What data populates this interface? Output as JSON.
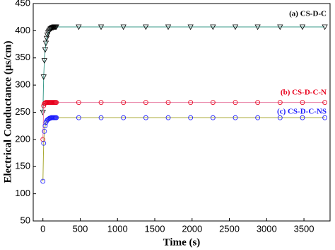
{
  "chart_data": {
    "type": "line",
    "xlabel": "Time (s)",
    "ylabel": "Electrical Conductance (µs/cm)",
    "x": [
      0,
      10,
      20,
      30,
      40,
      50,
      60,
      70,
      80,
      90,
      100,
      110,
      120,
      130,
      140,
      150,
      160,
      170,
      180,
      480,
      780,
      1080,
      1380,
      1680,
      1980,
      2280,
      2580,
      2880,
      3180,
      3480,
      3780
    ],
    "series": [
      {
        "name": "(a) CS-D-C",
        "color": "#000000",
        "line_color": "#3a9a8a",
        "marker": "triangle-down",
        "values": [
          250,
          315,
          345,
          365,
          377,
          386,
          392,
          396,
          399,
          401,
          403,
          404,
          405,
          406,
          406,
          407,
          407,
          407,
          407,
          407,
          407,
          407,
          407,
          407,
          407,
          407,
          407,
          407,
          407,
          407,
          407
        ]
      },
      {
        "name": "(b) CS-D-C-N",
        "color": "#e8001c",
        "line_color": "#e87aa0",
        "marker": "circle",
        "values": [
          200,
          262,
          266,
          267,
          268,
          268,
          268,
          268,
          268,
          268,
          268,
          268,
          268,
          268,
          268,
          268,
          268,
          268,
          268,
          268,
          268,
          268,
          268,
          268,
          268,
          268,
          268,
          268,
          268,
          268,
          268
        ]
      },
      {
        "name": "(c) CS-D-C-NS",
        "color": "#1a1aff",
        "line_color": "#a8a830",
        "marker": "circle",
        "values": [
          123,
          193,
          215,
          225,
          231,
          234,
          236,
          237,
          238,
          239,
          239,
          240,
          240,
          240,
          240,
          240,
          240,
          240,
          240,
          240,
          240,
          240,
          240,
          240,
          240,
          240,
          240,
          240,
          240,
          240,
          240
        ]
      }
    ],
    "xlim": [
      -130,
      3850
    ],
    "xticks": [
      0,
      500,
      1000,
      1500,
      2000,
      2500,
      3000,
      3500
    ],
    "ylim": [
      50,
      450
    ],
    "yticks": [
      50,
      100,
      150,
      200,
      250,
      300,
      350,
      400,
      450
    ]
  }
}
